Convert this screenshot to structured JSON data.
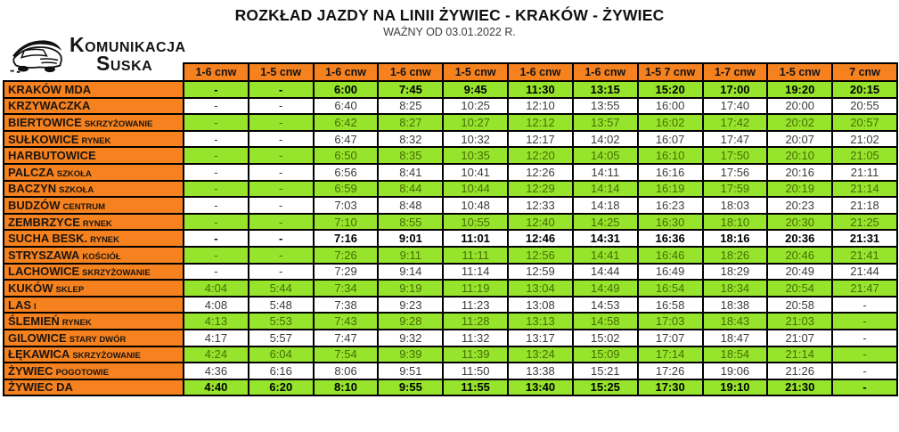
{
  "header": {
    "title": "ROZKŁAD JAZDY NA LINII ŻYWIEC - KRAKÓW - ŻYWIEC",
    "subtitle": "WAŻNY OD 03.01.2022 R."
  },
  "logo": {
    "line1": "Komunikacja",
    "line2": "Suska",
    "icon": "car-sketch-icon"
  },
  "colors": {
    "orange": "#f5811f",
    "green": "#97e42c",
    "green_row_text": "#456e04",
    "white_row_text": "#3c3c3c",
    "bold_text": "#000000",
    "border": "#000000"
  },
  "table": {
    "column_headers": [
      "1-6 cnw",
      "1-5 cnw",
      "1-6 cnw",
      "1-6 cnw",
      "1-5 cnw",
      "1-6 cnw",
      "1-6 cnw",
      "1-5 7 cnw",
      "1-7 cnw",
      "1-5 cnw",
      "7 cnw"
    ],
    "rows": [
      {
        "stop": "KRAKÓW MDA",
        "suffix": "",
        "green": true,
        "bold": true,
        "times": [
          "-",
          "-",
          "6:00",
          "7:45",
          "9:45",
          "11:30",
          "13:15",
          "15:20",
          "17:00",
          "19:20",
          "20:15"
        ]
      },
      {
        "stop": "KRZYWACZKA",
        "suffix": "",
        "green": false,
        "bold": false,
        "times": [
          "-",
          "-",
          "6:40",
          "8:25",
          "10:25",
          "12:10",
          "13:55",
          "16:00",
          "17:40",
          "20:00",
          "20:55"
        ]
      },
      {
        "stop": "BIERTOWICE",
        "suffix": "SKRZYŻOWANIE",
        "green": true,
        "bold": false,
        "times": [
          "-",
          "-",
          "6:42",
          "8:27",
          "10:27",
          "12:12",
          "13:57",
          "16:02",
          "17:42",
          "20:02",
          "20:57"
        ]
      },
      {
        "stop": "SUŁKOWICE",
        "suffix": "RYNEK",
        "green": false,
        "bold": false,
        "times": [
          "-",
          "-",
          "6:47",
          "8:32",
          "10:32",
          "12:17",
          "14:02",
          "16:07",
          "17:47",
          "20:07",
          "21:02"
        ]
      },
      {
        "stop": "HARBUTOWICE",
        "suffix": "",
        "green": true,
        "bold": false,
        "times": [
          "-",
          "-",
          "6:50",
          "8:35",
          "10:35",
          "12:20",
          "14:05",
          "16:10",
          "17:50",
          "20:10",
          "21:05"
        ]
      },
      {
        "stop": "PALCZA",
        "suffix": "SZKOŁA",
        "green": false,
        "bold": false,
        "times": [
          "-",
          "-",
          "6:56",
          "8:41",
          "10:41",
          "12:26",
          "14:11",
          "16:16",
          "17:56",
          "20:16",
          "21:11"
        ]
      },
      {
        "stop": "BACZYN",
        "suffix": "SZKOŁA",
        "green": true,
        "bold": false,
        "times": [
          "-",
          "-",
          "6:59",
          "8:44",
          "10:44",
          "12:29",
          "14:14",
          "16:19",
          "17:59",
          "20:19",
          "21:14"
        ]
      },
      {
        "stop": "BUDZÓW",
        "suffix": "CENTRUM",
        "green": false,
        "bold": false,
        "times": [
          "-",
          "-",
          "7:03",
          "8:48",
          "10:48",
          "12:33",
          "14:18",
          "16:23",
          "18:03",
          "20:23",
          "21:18"
        ]
      },
      {
        "stop": "ZEMBRZYCE",
        "suffix": "RYNEK",
        "green": true,
        "bold": false,
        "times": [
          "-",
          "-",
          "7:10",
          "8:55",
          "10:55",
          "12:40",
          "14:25",
          "16:30",
          "18:10",
          "20:30",
          "21:25"
        ]
      },
      {
        "stop": "SUCHA BESK.",
        "suffix": "RYNEK",
        "green": false,
        "bold": true,
        "times": [
          "-",
          "-",
          "7:16",
          "9:01",
          "11:01",
          "12:46",
          "14:31",
          "16:36",
          "18:16",
          "20:36",
          "21:31"
        ]
      },
      {
        "stop": "STRYSZAWA",
        "suffix": "KOŚCIÓŁ",
        "green": true,
        "bold": false,
        "times": [
          "-",
          "-",
          "7:26",
          "9:11",
          "11:11",
          "12:56",
          "14:41",
          "16:46",
          "18:26",
          "20:46",
          "21:41"
        ]
      },
      {
        "stop": "LACHOWICE",
        "suffix": "SKRZYŻOWANIE",
        "green": false,
        "bold": false,
        "times": [
          "-",
          "-",
          "7:29",
          "9:14",
          "11:14",
          "12:59",
          "14:44",
          "16:49",
          "18:29",
          "20:49",
          "21:44"
        ]
      },
      {
        "stop": "KUKÓW",
        "suffix": "SKLEP",
        "green": true,
        "bold": false,
        "times": [
          "4:04",
          "5:44",
          "7:34",
          "9:19",
          "11:19",
          "13:04",
          "14:49",
          "16:54",
          "18:34",
          "20:54",
          "21:47"
        ]
      },
      {
        "stop": "LAS",
        "suffix": "I",
        "green": false,
        "bold": false,
        "times": [
          "4:08",
          "5:48",
          "7:38",
          "9:23",
          "11:23",
          "13:08",
          "14:53",
          "16:58",
          "18:38",
          "20:58",
          "-"
        ]
      },
      {
        "stop": "ŚLEMIEŃ",
        "suffix": "RYNEK",
        "green": true,
        "bold": false,
        "times": [
          "4:13",
          "5:53",
          "7:43",
          "9:28",
          "11:28",
          "13:13",
          "14:58",
          "17:03",
          "18:43",
          "21:03",
          "-"
        ]
      },
      {
        "stop": "GILOWICE",
        "suffix": "STARY DWÓR",
        "green": false,
        "bold": false,
        "times": [
          "4:17",
          "5:57",
          "7:47",
          "9:32",
          "11:32",
          "13:17",
          "15:02",
          "17:07",
          "18:47",
          "21:07",
          "-"
        ]
      },
      {
        "stop": "ŁĘKAWICA",
        "suffix": "SKRZYŻOWANIE",
        "green": true,
        "bold": false,
        "times": [
          "4:24",
          "6:04",
          "7:54",
          "9:39",
          "11:39",
          "13:24",
          "15:09",
          "17:14",
          "18:54",
          "21:14",
          "-"
        ]
      },
      {
        "stop": "ŻYWIEC",
        "suffix": "POGOTOWIE",
        "green": false,
        "bold": false,
        "times": [
          "4:36",
          "6:16",
          "8:06",
          "9:51",
          "11:50",
          "13:38",
          "15:21",
          "17:26",
          "19:06",
          "21:26",
          "-"
        ]
      },
      {
        "stop": "ŻYWIEC DA",
        "suffix": "",
        "green": true,
        "bold": true,
        "times": [
          "4:40",
          "6:20",
          "8:10",
          "9:55",
          "11:55",
          "13:40",
          "15:25",
          "17:30",
          "19:10",
          "21:30",
          "-"
        ]
      }
    ]
  }
}
